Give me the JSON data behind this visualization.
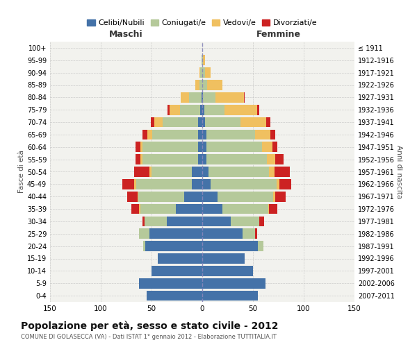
{
  "age_groups": [
    "0-4",
    "5-9",
    "10-14",
    "15-19",
    "20-24",
    "25-29",
    "30-34",
    "35-39",
    "40-44",
    "45-49",
    "50-54",
    "55-59",
    "60-64",
    "65-69",
    "70-74",
    "75-79",
    "80-84",
    "85-89",
    "90-94",
    "95-99",
    "100+"
  ],
  "birth_years": [
    "2007-2011",
    "2002-2006",
    "1997-2001",
    "1992-1996",
    "1987-1991",
    "1982-1986",
    "1977-1981",
    "1972-1976",
    "1967-1971",
    "1962-1966",
    "1957-1961",
    "1952-1956",
    "1947-1951",
    "1942-1946",
    "1937-1941",
    "1932-1936",
    "1927-1931",
    "1922-1926",
    "1917-1921",
    "1912-1916",
    "≤ 1911"
  ],
  "maschi": {
    "celibi": [
      55,
      62,
      50,
      44,
      56,
      52,
      35,
      26,
      18,
      10,
      10,
      4,
      4,
      4,
      4,
      2,
      1,
      0,
      0,
      0,
      0
    ],
    "coniugati": [
      0,
      0,
      0,
      0,
      2,
      10,
      22,
      35,
      45,
      55,
      40,
      55,
      55,
      45,
      35,
      20,
      12,
      3,
      2,
      1,
      0
    ],
    "vedovi": [
      0,
      0,
      0,
      0,
      0,
      0,
      0,
      1,
      1,
      2,
      2,
      2,
      2,
      5,
      8,
      10,
      8,
      4,
      1,
      0,
      0
    ],
    "divorziati": [
      0,
      0,
      0,
      0,
      0,
      0,
      2,
      8,
      10,
      12,
      15,
      5,
      5,
      5,
      4,
      2,
      0,
      0,
      0,
      0,
      0
    ]
  },
  "femmine": {
    "nubili": [
      55,
      62,
      50,
      42,
      55,
      40,
      28,
      20,
      15,
      8,
      6,
      4,
      4,
      4,
      3,
      2,
      1,
      0,
      0,
      0,
      0
    ],
    "coniugate": [
      0,
      0,
      0,
      0,
      5,
      12,
      28,
      45,
      55,
      65,
      60,
      60,
      55,
      48,
      35,
      20,
      12,
      5,
      3,
      1,
      0
    ],
    "vedove": [
      0,
      0,
      0,
      0,
      0,
      0,
      0,
      1,
      2,
      3,
      5,
      8,
      10,
      15,
      25,
      32,
      28,
      15,
      5,
      2,
      0
    ],
    "divorziate": [
      0,
      0,
      0,
      0,
      0,
      2,
      5,
      8,
      10,
      12,
      15,
      8,
      5,
      5,
      4,
      2,
      1,
      0,
      0,
      0,
      0
    ]
  },
  "colors": {
    "celibi": "#4472a8",
    "coniugati": "#b5c99a",
    "vedovi": "#f0c060",
    "divorziati": "#cc2222"
  },
  "xlim": 150,
  "title": "Popolazione per età, sesso e stato civile - 2012",
  "subtitle": "COMUNE DI GOLASECCA (VA) - Dati ISTAT 1° gennaio 2012 - Elaborazione TUTTITALIA.IT",
  "ylabel_left": "Fasce di età",
  "ylabel_right": "Anni di nascita",
  "xlabel_maschi": "Maschi",
  "xlabel_femmine": "Femmine",
  "bg_color": "#f2f2ee",
  "legend_labels": [
    "Celibi/Nubili",
    "Coniugati/e",
    "Vedovi/e",
    "Divorziati/e"
  ]
}
